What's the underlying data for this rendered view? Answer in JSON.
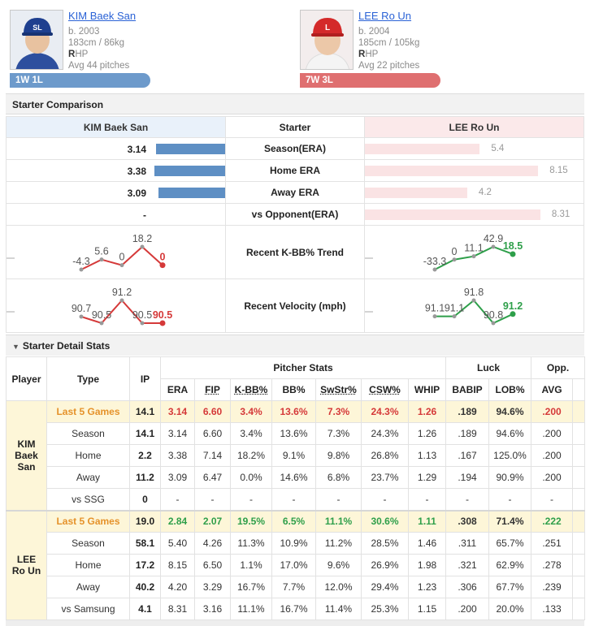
{
  "header": {
    "top_link": ""
  },
  "players": [
    {
      "name": "KIM Baek San",
      "birth": "b. 2003",
      "size": "183cm / 86kg",
      "hand_letter": "R",
      "hand_rest": "HP",
      "avg_pitches": "Avg 44 pitches",
      "record": "1W 1L",
      "cap_color": "#1e3f8f",
      "cap_logo": "SL"
    },
    {
      "name": "LEE Ro Un",
      "birth": "b. 2004",
      "size": "185cm / 105kg",
      "hand_letter": "R",
      "hand_rest": "HP",
      "avg_pitches": "Avg 22 pitches",
      "record": "7W 3L",
      "cap_color": "#d42a2a",
      "cap_logo": "L"
    }
  ],
  "comparison": {
    "title": "Starter Comparison",
    "left_header": "KIM Baek San",
    "mid_header": "Starter",
    "right_header": "LEE Ro Un",
    "rows": [
      {
        "label": "Season(ERA)",
        "left": "3.14",
        "left_pct": 0.45,
        "right": "5.4",
        "right_pct": 0.55
      },
      {
        "label": "Home ERA",
        "left": "3.38",
        "left_pct": 0.46,
        "right": "8.15",
        "right_pct": 0.83
      },
      {
        "label": "Away ERA",
        "left": "3.09",
        "left_pct": 0.43,
        "right": "4.2",
        "right_pct": 0.49
      },
      {
        "label": "vs Opponent(ERA)",
        "left": "-",
        "left_pct": 0,
        "right": "8.31",
        "right_pct": 0.84
      }
    ],
    "trend_label": "Recent K-BB% Trend",
    "velo_label": "Recent Velocity (mph)",
    "trend_left": {
      "labels": [
        "-4.3",
        "5.6",
        "0",
        "18.2",
        "0"
      ],
      "values": [
        -4.3,
        5.6,
        0,
        18.2,
        0
      ]
    },
    "trend_right": {
      "labels": [
        "-33.3",
        "0",
        "11.1",
        "42.9",
        "18.5"
      ],
      "values": [
        -33.3,
        0,
        11.1,
        42.9,
        18.5
      ]
    },
    "velo_left": {
      "labels": [
        "90.7",
        "90.5",
        "91.2",
        "90.5",
        "90.5"
      ],
      "values": [
        90.7,
        90.5,
        91.2,
        90.5,
        90.5
      ]
    },
    "velo_right": {
      "labels": [
        "91.1",
        "91.1",
        "91.8",
        "90.8",
        "91.2"
      ],
      "values": [
        91.1,
        91.1,
        91.8,
        90.8,
        91.2
      ]
    },
    "colors": {
      "left_line": "#d53939",
      "right_line": "#2e9f4a",
      "dot": "#999999"
    }
  },
  "detail": {
    "title": "Starter Detail Stats",
    "group_pitcher": "Pitcher Stats",
    "group_luck": "Luck",
    "group_opp": "Opp.",
    "col_player": "Player",
    "col_type": "Type",
    "col_ip": "IP",
    "cols": [
      "ERA",
      "FIP",
      "K-BB%",
      "BB%",
      "SwStr%",
      "CSW%",
      "WHIP",
      "BABIP",
      "LOB%",
      "AVG"
    ],
    "players": [
      {
        "name_lines": [
          "KIM",
          "Baek",
          "San"
        ],
        "rows": [
          {
            "type": "Last 5 Games",
            "ip": "14.1",
            "vals": [
              "3.14",
              "6.60",
              "3.4%",
              "13.6%",
              "7.3%",
              "24.3%",
              "1.26",
              ".189",
              "94.6%",
              ".200"
            ]
          },
          {
            "type": "Season",
            "ip": "14.1",
            "vals": [
              "3.14",
              "6.60",
              "3.4%",
              "13.6%",
              "7.3%",
              "24.3%",
              "1.26",
              ".189",
              "94.6%",
              ".200"
            ]
          },
          {
            "type": "Home",
            "ip": "2.2",
            "vals": [
              "3.38",
              "7.14",
              "18.2%",
              "9.1%",
              "9.8%",
              "26.8%",
              "1.13",
              ".167",
              "125.0%",
              ".200"
            ]
          },
          {
            "type": "Away",
            "ip": "11.2",
            "vals": [
              "3.09",
              "6.47",
              "0.0%",
              "14.6%",
              "6.8%",
              "23.7%",
              "1.29",
              ".194",
              "90.9%",
              ".200"
            ]
          },
          {
            "type": "vs SSG",
            "ip": "0",
            "vals": [
              "-",
              "-",
              "-",
              "-",
              "-",
              "-",
              "-",
              "-",
              "-",
              "-"
            ]
          }
        ]
      },
      {
        "name_lines": [
          "LEE",
          "Ro Un"
        ],
        "rows": [
          {
            "type": "Last 5 Games",
            "ip": "19.0",
            "vals": [
              "2.84",
              "2.07",
              "19.5%",
              "6.5%",
              "11.1%",
              "30.6%",
              "1.11",
              ".308",
              "71.4%",
              ".222"
            ]
          },
          {
            "type": "Season",
            "ip": "58.1",
            "vals": [
              "5.40",
              "4.26",
              "11.3%",
              "10.9%",
              "11.2%",
              "28.5%",
              "1.46",
              ".311",
              "65.7%",
              ".251"
            ]
          },
          {
            "type": "Home",
            "ip": "17.2",
            "vals": [
              "8.15",
              "6.50",
              "1.1%",
              "17.0%",
              "9.6%",
              "26.9%",
              "1.98",
              ".321",
              "62.9%",
              ".278"
            ]
          },
          {
            "type": "Away",
            "ip": "40.2",
            "vals": [
              "4.20",
              "3.29",
              "16.7%",
              "7.7%",
              "12.0%",
              "29.4%",
              "1.23",
              ".306",
              "67.7%",
              ".239"
            ]
          },
          {
            "type": "vs Samsung",
            "ip": "4.1",
            "vals": [
              "8.31",
              "3.16",
              "11.1%",
              "16.7%",
              "11.4%",
              "25.3%",
              "1.15",
              ".200",
              "20.0%",
              ".133"
            ]
          }
        ]
      }
    ]
  }
}
